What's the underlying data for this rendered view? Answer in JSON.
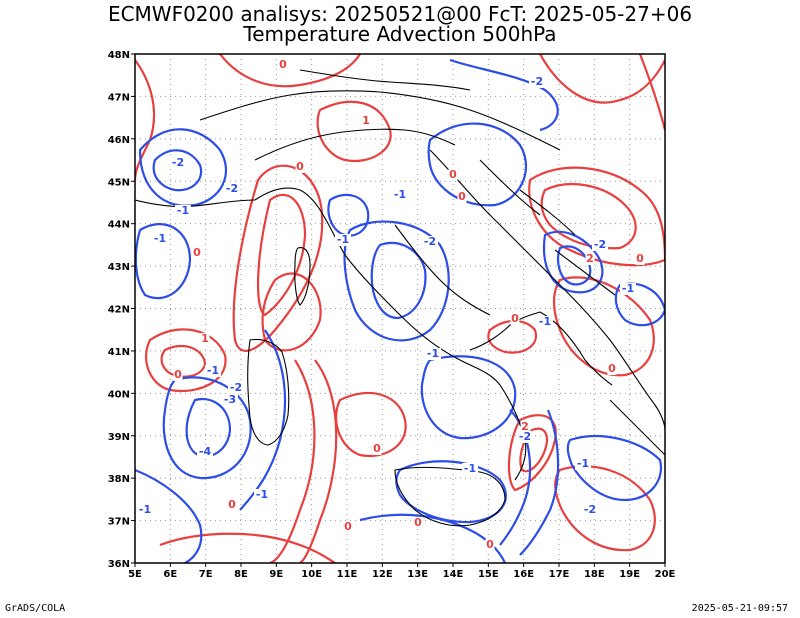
{
  "title": {
    "line1": "ECMWF0200 analisys: 20250521@00 FcT: 2025-05-27+06",
    "line2": "Temperature Advection 500hPa"
  },
  "footer": {
    "left": "GrADS/COLA",
    "right": "2025-05-21-09:57"
  },
  "map": {
    "lon_range": [
      5,
      20
    ],
    "lat_range": [
      36,
      48
    ],
    "lon_ticks": [
      "5E",
      "6E",
      "7E",
      "8E",
      "9E",
      "10E",
      "11E",
      "12E",
      "13E",
      "14E",
      "15E",
      "16E",
      "17E",
      "18E",
      "19E",
      "20E"
    ],
    "lat_ticks": [
      "36N",
      "37N",
      "38N",
      "39N",
      "40N",
      "41N",
      "42N",
      "43N",
      "44N",
      "45N",
      "46N",
      "47N",
      "48N"
    ],
    "grid": true,
    "colors": {
      "positive": "#e8403f",
      "negative": "#2d4de8",
      "coast": "#000000",
      "grid": "#999999"
    },
    "contour_labels_positive": [
      "0",
      "1",
      "2"
    ],
    "contour_labels_negative": [
      "-1",
      "-2",
      "-3",
      "-4"
    ]
  }
}
